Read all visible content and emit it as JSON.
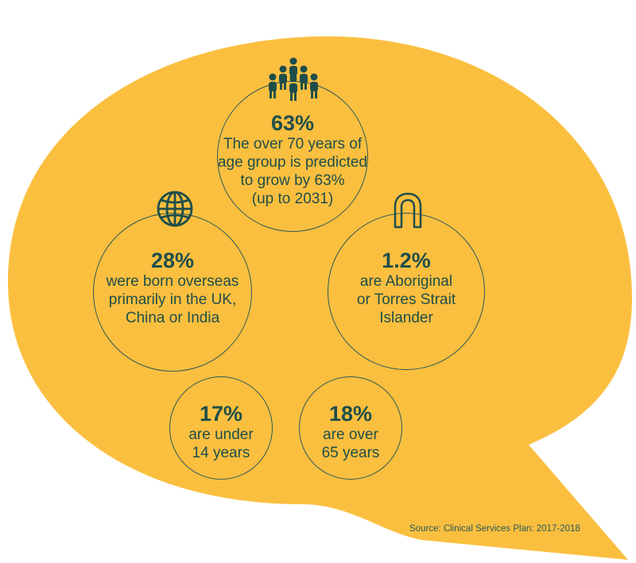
{
  "colors": {
    "bubble": "#FBBF3F",
    "ink": "#1F4E4A",
    "ring": "#2D5A55"
  },
  "stats": [
    {
      "id": "age70",
      "icon": "people-group-icon",
      "percent": "63%",
      "description": "The over 70 years of\nage group is predicted\nto grow by 63%\n(up to 2031)"
    },
    {
      "id": "overseas",
      "icon": "globe-icon",
      "percent": "28%",
      "description": "were born overseas\nprimarily in the UK,\nChina or India"
    },
    {
      "id": "aboriginal",
      "icon": "boomerang-icon",
      "percent": "1.2%",
      "description": "are Aboriginal\nor Torres Strait\nIslander"
    },
    {
      "id": "under14",
      "percent": "17%",
      "description": "are under\n14 years"
    },
    {
      "id": "over65",
      "percent": "18%",
      "description": "are over\n65 years"
    }
  ],
  "source": "Source: Clinical Services Plan: 2017-2018"
}
